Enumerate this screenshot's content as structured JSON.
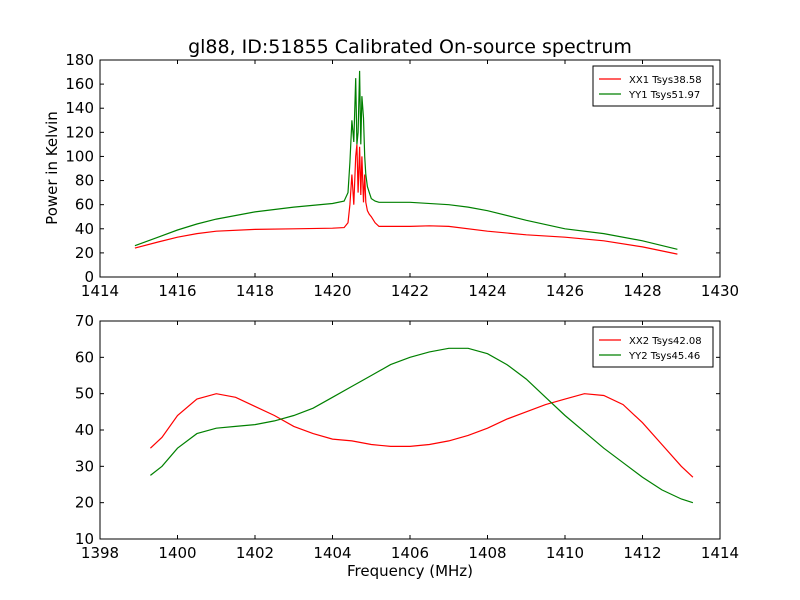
{
  "figure": {
    "title": "gl88, ID:51855 Calibrated On-source spectrum",
    "ylabel": "Power in Kelvin",
    "xlabel": "Frequency (MHz)"
  },
  "chart_data": [
    {
      "type": "line",
      "title": "gl88, ID:51855 Calibrated On-source spectrum",
      "xlabel": "",
      "ylabel": "Power in Kelvin",
      "xlim": [
        1414,
        1430
      ],
      "ylim": [
        0,
        180
      ],
      "xticks": [
        1414,
        1416,
        1418,
        1420,
        1422,
        1424,
        1426,
        1428,
        1430
      ],
      "yticks": [
        0,
        20,
        40,
        60,
        80,
        100,
        120,
        140,
        160,
        180
      ],
      "grid": false,
      "legend": "top-right",
      "series": [
        {
          "name": "XX1 Tsys38.58",
          "color": "#ff0000",
          "x": [
            1414.9,
            1415.5,
            1416.0,
            1416.5,
            1417.0,
            1418.0,
            1419.0,
            1420.0,
            1420.3,
            1420.4,
            1420.45,
            1420.5,
            1420.55,
            1420.6,
            1420.63,
            1420.66,
            1420.7,
            1420.73,
            1420.76,
            1420.8,
            1420.83,
            1420.86,
            1420.9,
            1420.95,
            1421.0,
            1421.1,
            1421.2,
            1422.0,
            1422.5,
            1423.0,
            1424.0,
            1425.0,
            1426.0,
            1427.0,
            1428.0,
            1428.9
          ],
          "y": [
            24,
            29,
            33,
            36,
            38,
            39.5,
            40,
            40.5,
            41,
            45,
            60,
            85,
            60,
            100,
            110,
            70,
            108,
            68,
            100,
            62,
            85,
            62,
            55,
            52,
            50,
            45,
            42,
            42,
            42.5,
            42,
            38,
            35,
            33,
            30,
            25,
            19
          ]
        },
        {
          "name": "YY1 Tsys51.97",
          "color": "#008000",
          "x": [
            1414.9,
            1415.5,
            1416.0,
            1416.5,
            1417.0,
            1418.0,
            1419.0,
            1420.0,
            1420.3,
            1420.4,
            1420.45,
            1420.5,
            1420.55,
            1420.6,
            1420.63,
            1420.66,
            1420.7,
            1420.73,
            1420.76,
            1420.8,
            1420.83,
            1420.86,
            1420.9,
            1420.95,
            1421.0,
            1421.1,
            1421.2,
            1422.0,
            1423.0,
            1423.5,
            1424.0,
            1425.0,
            1426.0,
            1427.0,
            1428.0,
            1428.9
          ],
          "y": [
            26,
            33,
            39,
            44,
            48,
            54,
            58,
            61,
            63,
            70,
            95,
            130,
            112,
            165,
            110,
            120,
            171,
            110,
            150,
            132,
            100,
            85,
            75,
            70,
            65,
            63,
            62,
            62,
            60,
            58,
            55,
            47,
            40,
            36,
            30,
            23
          ]
        }
      ]
    },
    {
      "type": "line",
      "title": "",
      "xlabel": "Frequency (MHz)",
      "ylabel": "",
      "xlim": [
        1398,
        1414
      ],
      "ylim": [
        10,
        70
      ],
      "xticks": [
        1398,
        1400,
        1402,
        1404,
        1406,
        1408,
        1410,
        1412,
        1414
      ],
      "yticks": [
        10,
        20,
        30,
        40,
        50,
        60,
        70
      ],
      "grid": false,
      "legend": "top-right",
      "series": [
        {
          "name": "XX2 Tsys42.08",
          "color": "#ff0000",
          "x": [
            1399.3,
            1399.6,
            1400.0,
            1400.5,
            1401.0,
            1401.5,
            1402.0,
            1402.5,
            1403.0,
            1403.5,
            1404.0,
            1404.5,
            1405.0,
            1405.5,
            1406.0,
            1406.5,
            1407.0,
            1407.5,
            1408.0,
            1408.5,
            1409.0,
            1409.5,
            1410.0,
            1410.5,
            1411.0,
            1411.5,
            1412.0,
            1412.5,
            1413.0,
            1413.3
          ],
          "y": [
            35,
            38,
            44,
            48.5,
            50,
            49,
            46.5,
            44,
            41,
            39,
            37.5,
            37,
            36,
            35.5,
            35.5,
            36,
            37,
            38.5,
            40.5,
            43,
            45,
            47,
            48.5,
            50,
            49.5,
            47,
            42,
            36,
            30,
            27
          ]
        },
        {
          "name": "YY2 Tsys45.46",
          "color": "#008000",
          "x": [
            1399.3,
            1399.6,
            1400.0,
            1400.5,
            1401.0,
            1401.5,
            1402.0,
            1402.5,
            1403.0,
            1403.5,
            1404.0,
            1404.5,
            1405.0,
            1405.5,
            1406.0,
            1406.5,
            1407.0,
            1407.5,
            1408.0,
            1408.5,
            1409.0,
            1409.5,
            1410.0,
            1410.5,
            1411.0,
            1411.5,
            1412.0,
            1412.5,
            1413.0,
            1413.3
          ],
          "y": [
            27.5,
            30,
            35,
            39,
            40.5,
            41,
            41.5,
            42.5,
            44,
            46,
            49,
            52,
            55,
            58,
            60,
            61.5,
            62.5,
            62.5,
            61,
            58,
            54,
            49,
            44,
            39.5,
            35,
            31,
            27,
            23.5,
            21,
            20
          ]
        }
      ]
    }
  ]
}
